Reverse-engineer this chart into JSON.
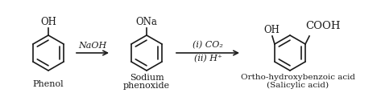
{
  "bg_color": "#ffffff",
  "text_color": "#1a1a1a",
  "arrow_color": "#1a1a1a",
  "phenol_label": "Phenol",
  "phenol_group": "OH",
  "sodium_phenoxide_label1": "Sodium",
  "sodium_phenoxide_label2": "phenoxide",
  "sodium_group": "ONa",
  "product_label": "Ortho-hydroxybenzoic acid",
  "product_label2": "(Salicylic acid)",
  "product_oh": "OH",
  "product_cooh": "COOH",
  "arrow1_label": "NaOH",
  "arrow2_label1": "(i) CO₂",
  "arrow2_label2": "(ii) H⁺",
  "figsize": [
    4.73,
    1.26
  ],
  "dpi": 100
}
